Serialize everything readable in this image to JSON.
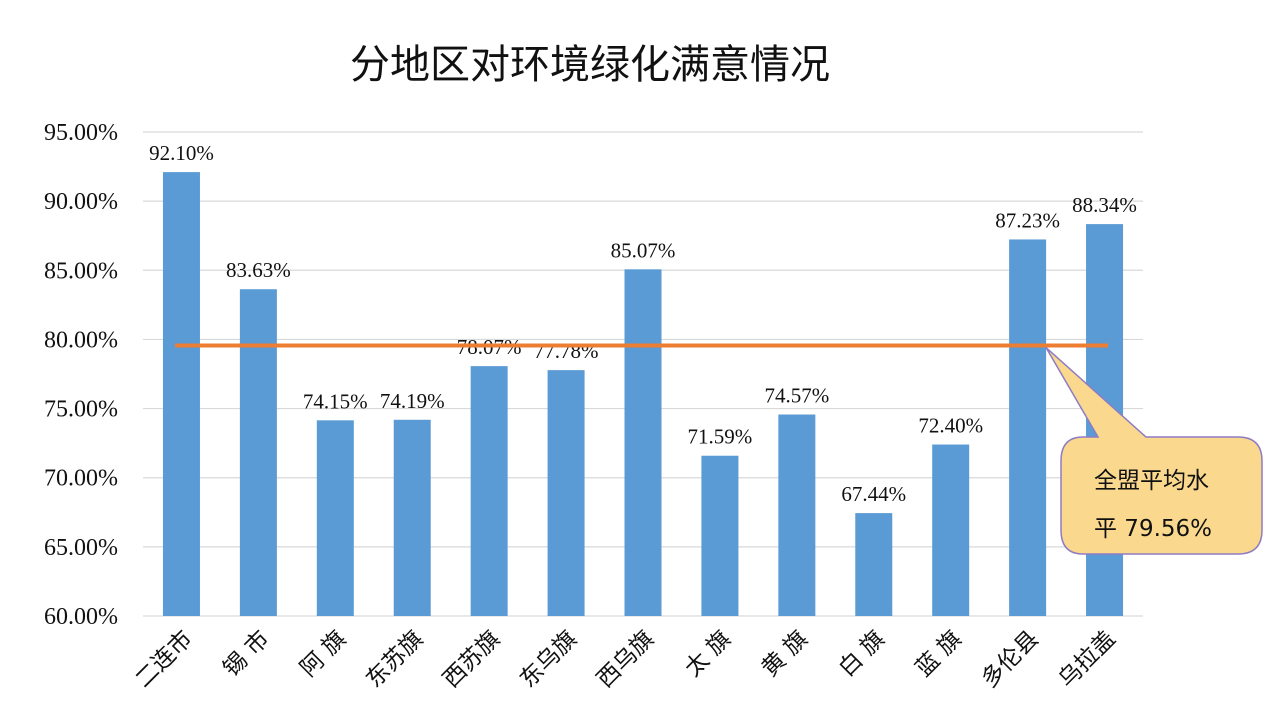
{
  "chart_data": {
    "type": "bar",
    "title": "分地区对环境绿化满意情况",
    "categories": [
      "二连市",
      "锡 市",
      "阿 旗",
      "东苏旗",
      "西苏旗",
      "东乌旗",
      "西乌旗",
      "太 旗",
      "黄 旗",
      "白 旗",
      "蓝 旗",
      "多伦县",
      "乌拉盖"
    ],
    "values": [
      92.1,
      83.63,
      74.15,
      74.19,
      78.07,
      77.78,
      85.07,
      71.59,
      74.57,
      67.44,
      72.4,
      87.23,
      88.34
    ],
    "value_labels": [
      "92.10%",
      "83.63%",
      "74.15%",
      "74.19%",
      "78.07%",
      "77.78%",
      "85.07%",
      "71.59%",
      "74.57%",
      "67.44%",
      "72.40%",
      "87.23%",
      "88.34%"
    ],
    "ylim": [
      60,
      95
    ],
    "yticks": [
      "60.00%",
      "65.00%",
      "70.00%",
      "75.00%",
      "80.00%",
      "85.00%",
      "90.00%",
      "95.00%"
    ],
    "grid": true,
    "reference_line": {
      "value": 79.56,
      "color": "#ED7D31"
    },
    "annotation": {
      "line1": "全盟平均水",
      "line2": "平 79.56%"
    },
    "colors": {
      "bar": "#5B9BD5",
      "grid": "#d9d9d9",
      "callout_fill": "#FAD88E",
      "callout_stroke": "#8E7CC3"
    }
  }
}
